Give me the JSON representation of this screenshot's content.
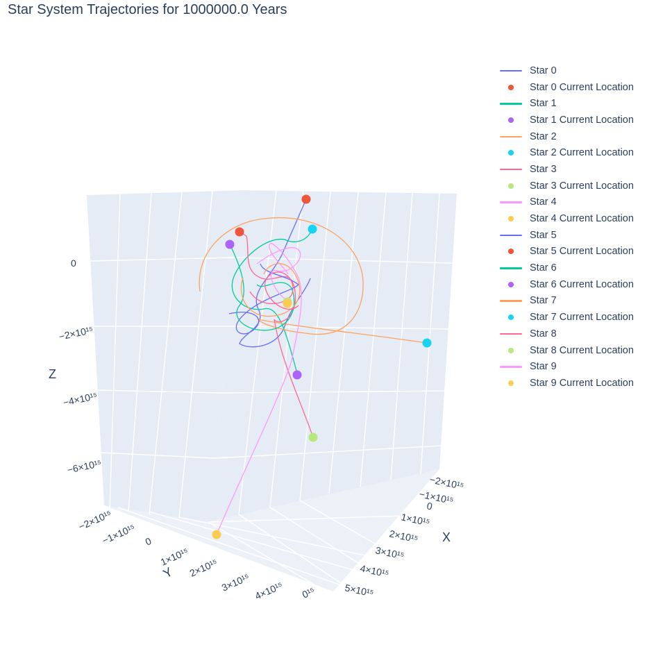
{
  "title": "Star System Trajectories for 1000000.0 Years",
  "chart_data": {
    "type": "scatter3d",
    "title": "Star System Trajectories for 1000000.0 Years",
    "axes": {
      "x": {
        "label": "X",
        "ticks": [
          "−2×10¹⁵",
          "−1×10¹⁵",
          "0",
          "1×10¹⁵",
          "2×10¹⁵",
          "3×10¹⁵",
          "4×10¹⁵",
          "5×10¹⁵"
        ]
      },
      "y": {
        "label": "Y",
        "ticks": [
          "−2×10¹⁵",
          "−1×10¹⁵",
          "0",
          "1×10¹⁵",
          "2×10¹⁵",
          "3×10¹⁵",
          "4×10¹⁵",
          "0¹⁵"
        ]
      },
      "z": {
        "label": "Z",
        "ticks": [
          "0",
          "−2×10¹⁵",
          "−4×10¹⁵",
          "−6×10¹⁵"
        ]
      }
    },
    "legend_placement": "right",
    "series": [
      {
        "name": "Star 0",
        "type": "line",
        "color": "#636efa"
      },
      {
        "name": "Star 0 Current Location",
        "type": "marker",
        "color": "#EF553B"
      },
      {
        "name": "Star 1",
        "type": "line",
        "color": "#00cc96"
      },
      {
        "name": "Star 1 Current Location",
        "type": "marker",
        "color": "#ab63fa"
      },
      {
        "name": "Star 2",
        "type": "line",
        "color": "#FFA15A"
      },
      {
        "name": "Star 2 Current Location",
        "type": "marker",
        "color": "#19d3f3"
      },
      {
        "name": "Star 3",
        "type": "line",
        "color": "#FF6692"
      },
      {
        "name": "Star 3 Current Location",
        "type": "marker",
        "color": "#B6E880"
      },
      {
        "name": "Star 4",
        "type": "line",
        "color": "#FF97FF"
      },
      {
        "name": "Star 4 Current Location",
        "type": "marker",
        "color": "#FECB52"
      },
      {
        "name": "Star 5",
        "type": "line",
        "color": "#636efa"
      },
      {
        "name": "Star 5 Current Location",
        "type": "marker",
        "color": "#EF553B"
      },
      {
        "name": "Star 6",
        "type": "line",
        "color": "#00cc96"
      },
      {
        "name": "Star 6 Current Location",
        "type": "marker",
        "color": "#ab63fa"
      },
      {
        "name": "Star 7",
        "type": "line",
        "color": "#FFA15A"
      },
      {
        "name": "Star 7 Current Location",
        "type": "marker",
        "color": "#19d3f3"
      },
      {
        "name": "Star 8",
        "type": "line",
        "color": "#FF6692"
      },
      {
        "name": "Star 8 Current Location",
        "type": "marker",
        "color": "#B6E880"
      },
      {
        "name": "Star 9",
        "type": "line",
        "color": "#FF97FF"
      },
      {
        "name": "Star 9 Current Location",
        "type": "marker",
        "color": "#FECB52"
      }
    ]
  }
}
